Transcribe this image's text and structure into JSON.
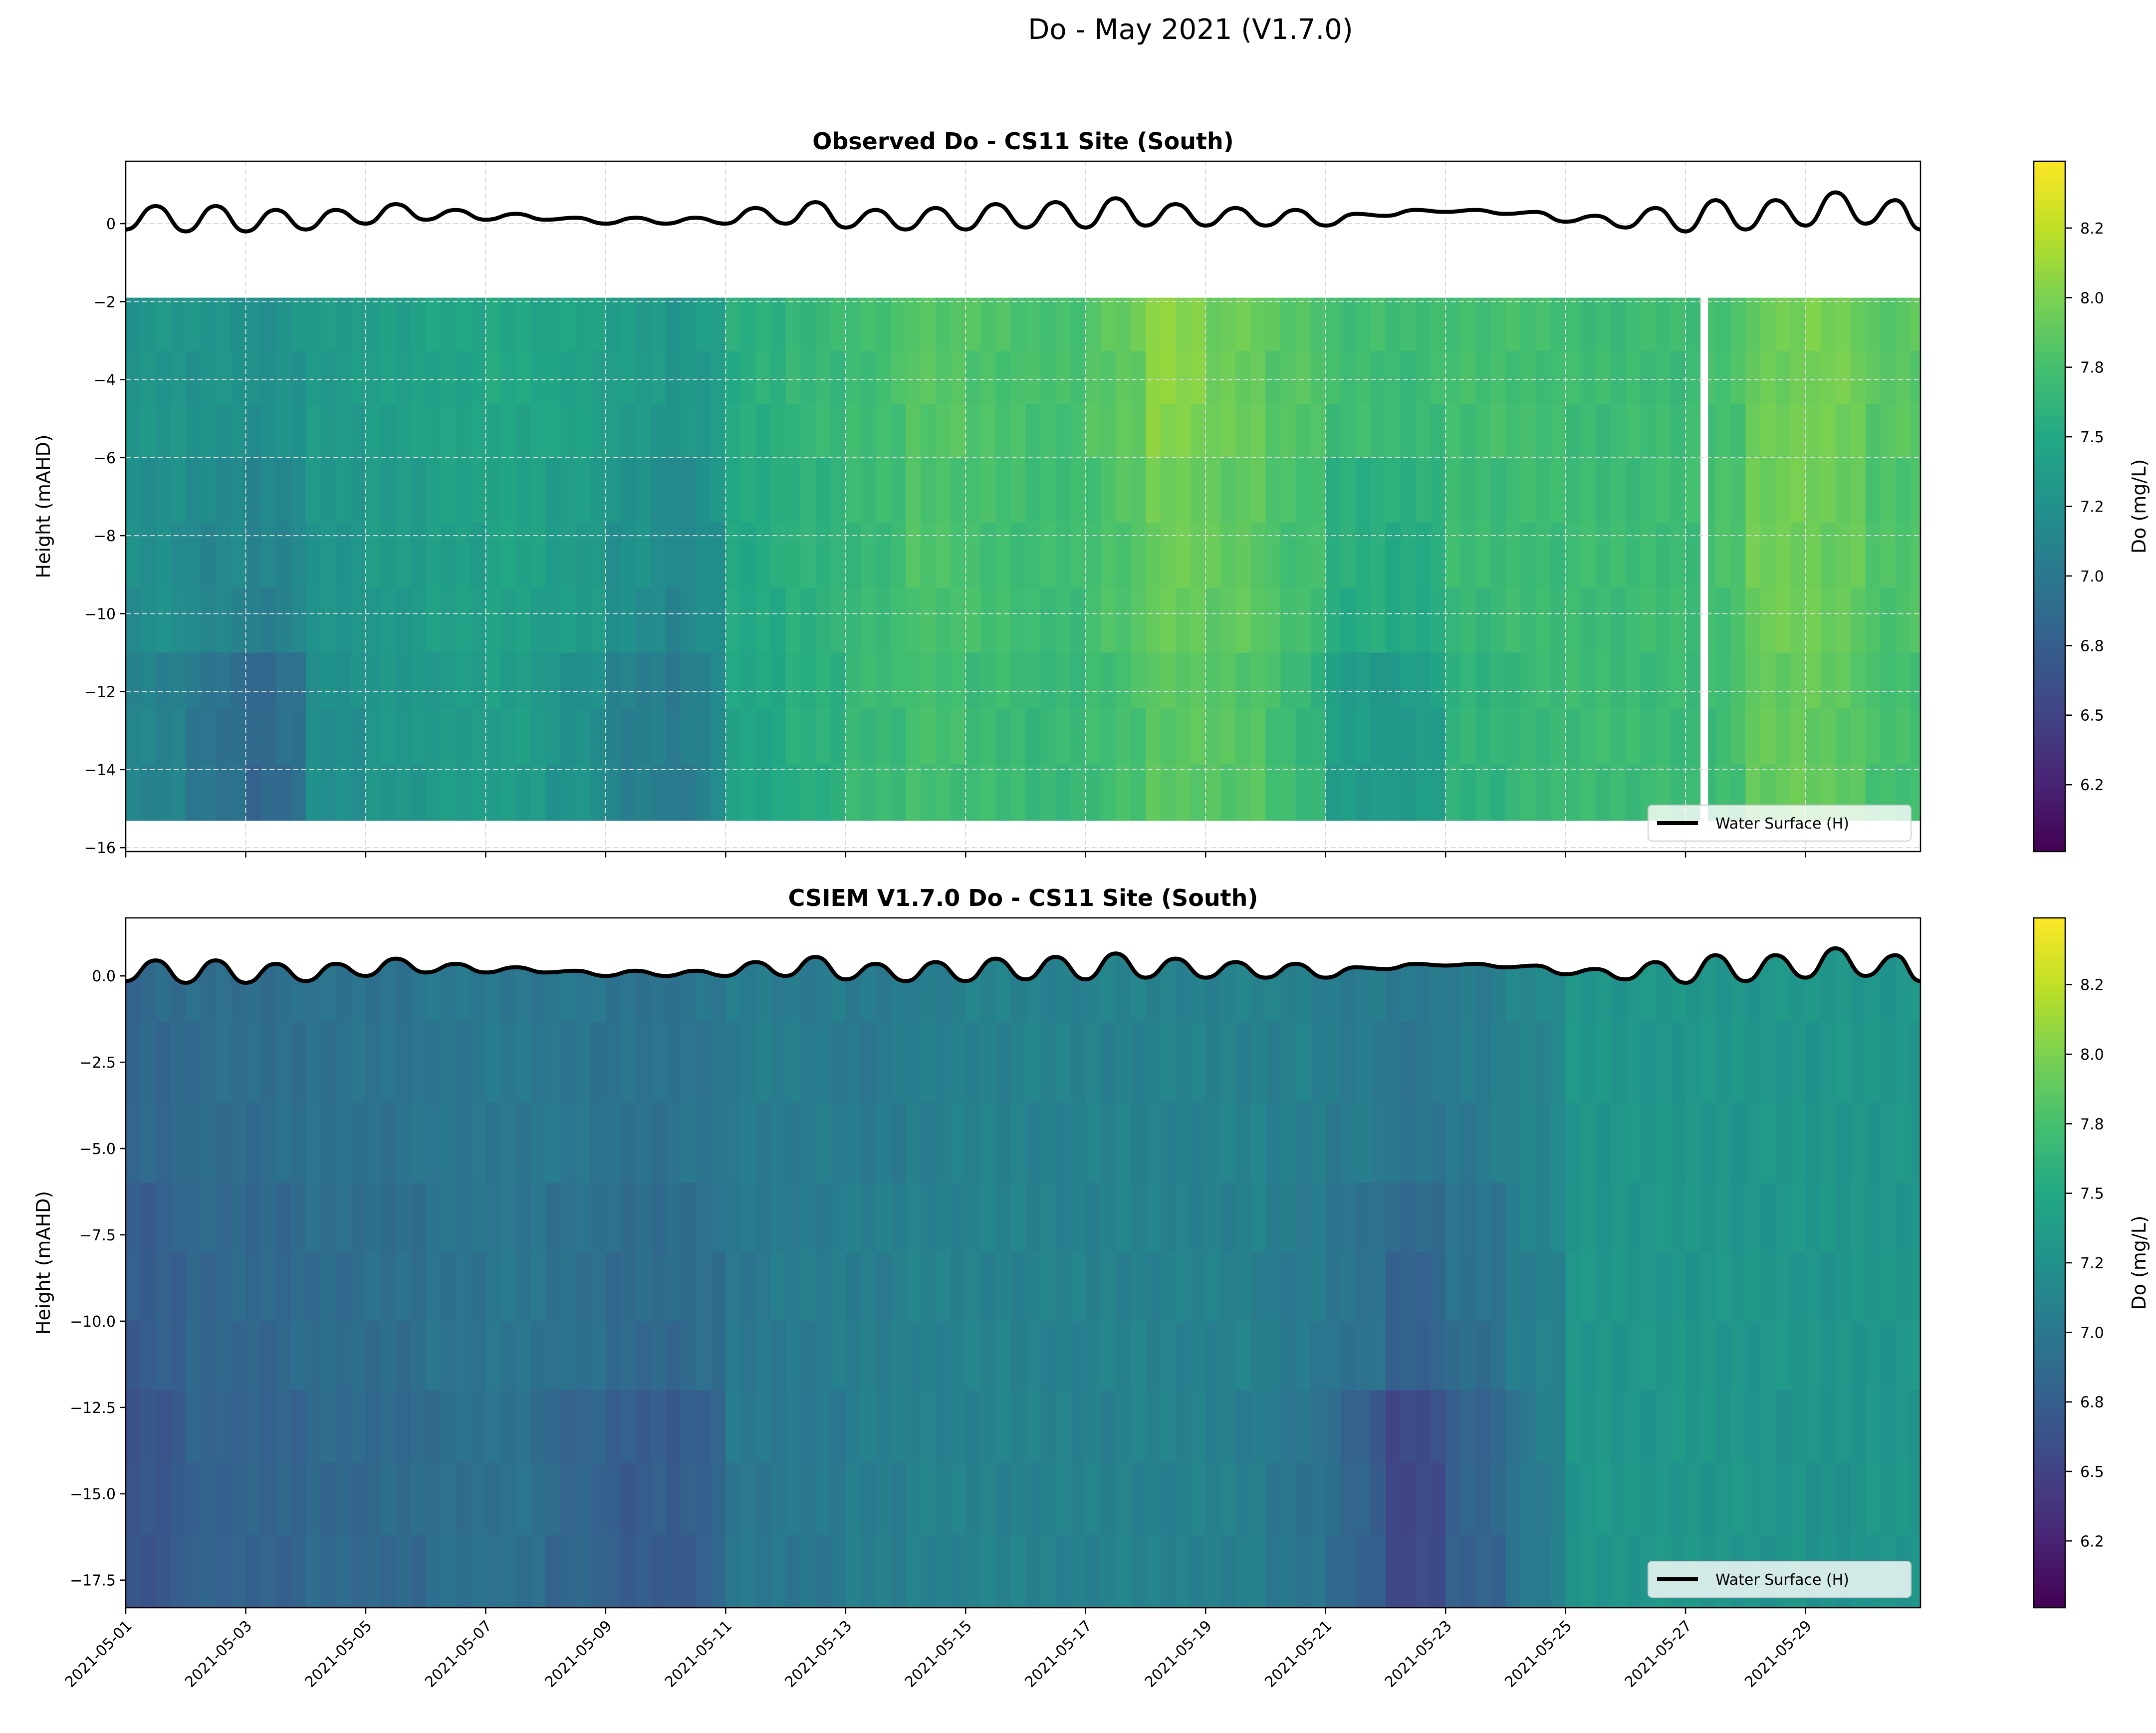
{
  "suptitle": "Do - May 2021 (V1.7.0)",
  "colors": {
    "water_line": "#000000",
    "grid": "#d9d9d9",
    "colormap": "viridis"
  },
  "chart_data": [
    {
      "type": "heatmap",
      "title": "Observed Do - CS11 Site (South)",
      "ylabel": "Height (mAHD)",
      "xlim": [
        "2021-05-01T00:00",
        "2021-05-30T22:00"
      ],
      "ylim": [
        -16.1,
        1.6
      ],
      "yticks": [
        0,
        -2,
        -4,
        -6,
        -8,
        -10,
        -12,
        -14,
        -16
      ],
      "ytick_labels": [
        "0",
        "−2",
        "−4",
        "−6",
        "−8",
        "−10",
        "−12",
        "−14",
        "−16"
      ],
      "grid": true,
      "depth_bands": [
        [
          -1.9,
          -6
        ],
        [
          -6,
          -11
        ],
        [
          -11,
          -15.3
        ]
      ],
      "daily_values": [
        [
          7.3,
          7.25,
          7.15
        ],
        [
          7.3,
          7.2,
          7.0
        ],
        [
          7.25,
          7.15,
          6.8
        ],
        [
          7.35,
          7.3,
          7.2
        ],
        [
          7.4,
          7.35,
          7.3
        ],
        [
          7.45,
          7.4,
          7.35
        ],
        [
          7.5,
          7.45,
          7.4
        ],
        [
          7.45,
          7.4,
          7.3
        ],
        [
          7.4,
          7.3,
          7.1
        ],
        [
          7.3,
          7.15,
          7.0
        ],
        [
          7.55,
          7.5,
          7.45
        ],
        [
          7.65,
          7.6,
          7.55
        ],
        [
          7.7,
          7.65,
          7.65
        ],
        [
          7.85,
          7.8,
          7.75
        ],
        [
          7.8,
          7.75,
          7.7
        ],
        [
          7.75,
          7.7,
          7.65
        ],
        [
          7.8,
          7.75,
          7.7
        ],
        [
          8.1,
          7.95,
          7.85
        ],
        [
          7.95,
          7.9,
          7.85
        ],
        [
          7.85,
          7.8,
          7.75
        ],
        [
          7.75,
          7.6,
          7.4
        ],
        [
          7.7,
          7.55,
          7.3
        ],
        [
          7.75,
          7.7,
          7.6
        ],
        [
          7.75,
          7.7,
          7.65
        ],
        [
          7.7,
          7.7,
          7.7
        ],
        [
          7.7,
          7.7,
          7.7
        ],
        [
          7.7,
          7.7,
          7.65
        ],
        [
          7.9,
          7.95,
          7.9
        ],
        [
          8.0,
          7.95,
          7.9
        ],
        [
          7.85,
          7.8,
          7.75
        ]
      ],
      "gaps": [
        [
          "2021-05-27T06:00",
          "2021-05-27T09:00"
        ]
      ],
      "legend": {
        "label": "Water Surface (H)",
        "placement": "lower right"
      },
      "colorbar": {
        "label": "Do (mg/L)",
        "range": [
          6.01,
          8.49
        ],
        "ticks": [
          8.25,
          8.0,
          7.75,
          7.5,
          7.25,
          7.0,
          6.75,
          6.5,
          6.25
        ],
        "tick_labels": [
          "8.2",
          "8.0",
          "7.8",
          "7.5",
          "7.2",
          "7.0",
          "6.8",
          "6.5",
          "6.2"
        ]
      }
    },
    {
      "type": "heatmap",
      "title": "CSIEM V1.7.0 Do - CS11 Site (South)",
      "ylabel": "Height (mAHD)",
      "xlim": [
        "2021-05-01T00:00",
        "2021-05-30T22:00"
      ],
      "ylim": [
        -18.3,
        1.68
      ],
      "yticks": [
        0,
        -2.5,
        -5,
        -7.5,
        -10,
        -12.5,
        -15,
        -17.5
      ],
      "ytick_labels": [
        "0.0",
        "−2.5",
        "−5.0",
        "−7.5",
        "−10.0",
        "−12.5",
        "−15.0",
        "−17.5"
      ],
      "grid": false,
      "depth_bands": [
        [
          1.0,
          -6
        ],
        [
          -6,
          -12
        ],
        [
          -12,
          -18.3
        ]
      ],
      "daily_values": [
        [
          6.85,
          6.75,
          6.65
        ],
        [
          6.9,
          6.85,
          6.8
        ],
        [
          6.9,
          6.85,
          6.8
        ],
        [
          6.95,
          6.9,
          6.85
        ],
        [
          6.95,
          6.9,
          6.85
        ],
        [
          7.0,
          6.95,
          6.9
        ],
        [
          7.0,
          7.0,
          6.95
        ],
        [
          7.0,
          6.95,
          6.85
        ],
        [
          6.95,
          6.9,
          6.75
        ],
        [
          6.95,
          6.9,
          6.7
        ],
        [
          7.05,
          7.0,
          7.0
        ],
        [
          7.05,
          7.05,
          7.0
        ],
        [
          7.0,
          7.05,
          7.05
        ],
        [
          7.05,
          7.1,
          7.1
        ],
        [
          7.1,
          7.1,
          7.1
        ],
        [
          7.1,
          7.1,
          7.1
        ],
        [
          7.1,
          7.1,
          7.1
        ],
        [
          7.1,
          7.1,
          7.1
        ],
        [
          7.1,
          7.1,
          7.1
        ],
        [
          7.1,
          7.05,
          7.0
        ],
        [
          7.05,
          7.0,
          6.9
        ],
        [
          7.0,
          6.85,
          6.5
        ],
        [
          7.05,
          6.95,
          6.75
        ],
        [
          7.1,
          7.05,
          6.95
        ],
        [
          7.3,
          7.3,
          7.3
        ],
        [
          7.3,
          7.3,
          7.3
        ],
        [
          7.3,
          7.3,
          7.3
        ],
        [
          7.3,
          7.3,
          7.3
        ],
        [
          7.3,
          7.3,
          7.25
        ],
        [
          7.3,
          7.3,
          7.3
        ]
      ],
      "gaps": [],
      "legend": {
        "label": "Water Surface (H)",
        "placement": "lower right"
      },
      "colorbar": {
        "label": "Do (mg/L)",
        "range": [
          6.01,
          8.49
        ],
        "ticks": [
          8.25,
          8.0,
          7.75,
          7.5,
          7.25,
          7.0,
          6.75,
          6.5,
          6.25
        ],
        "tick_labels": [
          "8.2",
          "8.0",
          "7.8",
          "7.5",
          "7.2",
          "7.0",
          "6.8",
          "6.5",
          "6.2"
        ]
      }
    }
  ],
  "xticks": [
    "2021-05-01",
    "2021-05-03",
    "2021-05-05",
    "2021-05-07",
    "2021-05-09",
    "2021-05-11",
    "2021-05-13",
    "2021-05-15",
    "2021-05-17",
    "2021-05-19",
    "2021-05-21",
    "2021-05-23",
    "2021-05-25",
    "2021-05-27",
    "2021-05-29"
  ],
  "water_surface": {
    "name": "Water Surface (H)",
    "x": [
      "2021-05-01T00:00",
      "2021-05-01T12:00",
      "2021-05-02T00:00",
      "2021-05-02T12:00",
      "2021-05-03T00:00",
      "2021-05-03T12:00",
      "2021-05-04T00:00",
      "2021-05-04T12:00",
      "2021-05-05T00:00",
      "2021-05-05T12:00",
      "2021-05-06T00:00",
      "2021-05-06T12:00",
      "2021-05-07T00:00",
      "2021-05-07T12:00",
      "2021-05-08T00:00",
      "2021-05-08T12:00",
      "2021-05-09T00:00",
      "2021-05-09T12:00",
      "2021-05-10T00:00",
      "2021-05-10T12:00",
      "2021-05-11T00:00",
      "2021-05-11T12:00",
      "2021-05-12T00:00",
      "2021-05-12T12:00",
      "2021-05-13T00:00",
      "2021-05-13T12:00",
      "2021-05-14T00:00",
      "2021-05-14T12:00",
      "2021-05-15T00:00",
      "2021-05-15T12:00",
      "2021-05-16T00:00",
      "2021-05-16T12:00",
      "2021-05-17T00:00",
      "2021-05-17T12:00",
      "2021-05-18T00:00",
      "2021-05-18T12:00",
      "2021-05-19T00:00",
      "2021-05-19T12:00",
      "2021-05-20T00:00",
      "2021-05-20T12:00",
      "2021-05-21T00:00",
      "2021-05-21T12:00",
      "2021-05-22T00:00",
      "2021-05-22T12:00",
      "2021-05-23T00:00",
      "2021-05-23T12:00",
      "2021-05-24T00:00",
      "2021-05-24T12:00",
      "2021-05-25T00:00",
      "2021-05-25T12:00",
      "2021-05-26T00:00",
      "2021-05-26T12:00",
      "2021-05-27T00:00",
      "2021-05-27T12:00",
      "2021-05-28T00:00",
      "2021-05-28T12:00",
      "2021-05-29T00:00",
      "2021-05-29T12:00",
      "2021-05-30T00:00",
      "2021-05-30T12:00",
      "2021-05-30T22:00"
    ],
    "y": [
      -0.15,
      0.45,
      -0.2,
      0.45,
      -0.2,
      0.35,
      -0.15,
      0.35,
      0.0,
      0.5,
      0.1,
      0.35,
      0.1,
      0.25,
      0.1,
      0.15,
      0.0,
      0.15,
      0.0,
      0.15,
      0.0,
      0.4,
      0.0,
      0.55,
      -0.1,
      0.35,
      -0.15,
      0.4,
      -0.15,
      0.5,
      -0.1,
      0.55,
      -0.1,
      0.65,
      -0.05,
      0.5,
      -0.05,
      0.4,
      -0.05,
      0.35,
      -0.05,
      0.25,
      0.2,
      0.35,
      0.3,
      0.35,
      0.25,
      0.3,
      0.05,
      0.2,
      -0.1,
      0.4,
      -0.2,
      0.6,
      -0.15,
      0.6,
      -0.05,
      0.8,
      0.0,
      0.6,
      -0.15
    ]
  }
}
